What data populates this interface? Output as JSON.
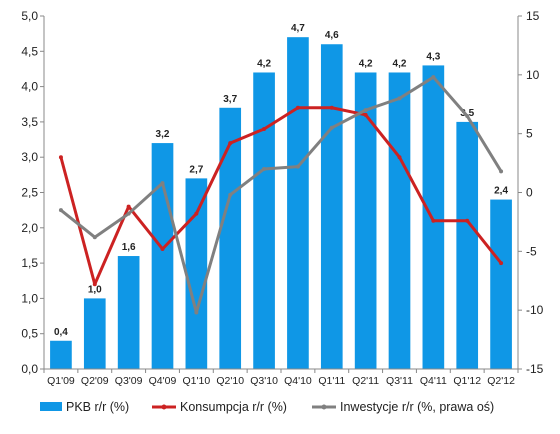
{
  "chart_data": {
    "type": "bar",
    "categories": [
      "Q1'09",
      "Q2'09",
      "Q3'09",
      "Q4'09",
      "Q1'10",
      "Q2'10",
      "Q3'10",
      "Q4'10",
      "Q1'11",
      "Q2'11",
      "Q3'11",
      "Q4'11",
      "Q1'12",
      "Q2'12"
    ],
    "y_left": {
      "ylim": [
        0,
        5
      ],
      "ticks": [
        "0,0",
        "0,5",
        "1,0",
        "1,5",
        "2,0",
        "2,5",
        "3,0",
        "3,5",
        "4,0",
        "4,5",
        "5,0"
      ]
    },
    "y_right": {
      "ylim": [
        -15,
        15
      ],
      "ticks": [
        "-15",
        "-10",
        "-5",
        "0",
        "5",
        "10",
        "15"
      ]
    },
    "grid": false,
    "legend_position": "bottom",
    "series": [
      {
        "name": "PKB r/r  (%)",
        "type": "bar",
        "axis": "left",
        "color": "#0f97e6",
        "values": [
          0.4,
          1.0,
          1.6,
          3.2,
          2.7,
          3.7,
          4.2,
          4.7,
          4.6,
          4.2,
          4.2,
          4.3,
          3.5,
          2.4
        ],
        "labels": [
          "0,4",
          "1,0",
          "1,6",
          "3,2",
          "2,7",
          "3,7",
          "4,2",
          "4,7",
          "4,6",
          "4,2",
          "4,2",
          "4,3",
          "3,5",
          "2,4"
        ]
      },
      {
        "name": "Konsumpcja r/r  (%)",
        "type": "line",
        "axis": "left",
        "color": "#cc2222",
        "values": [
          3.0,
          1.2,
          2.3,
          1.7,
          2.2,
          3.2,
          3.4,
          3.7,
          3.7,
          3.6,
          3.0,
          2.1,
          2.1,
          1.5
        ]
      },
      {
        "name": "Inwestycje r/r  (%, prawa oś)",
        "type": "line",
        "axis": "right",
        "color": "#808080",
        "values": [
          -1.5,
          -3.8,
          -1.8,
          0.8,
          -10.2,
          -0.2,
          2.0,
          2.2,
          5.5,
          7.0,
          8.0,
          9.8,
          6.5,
          1.8
        ]
      }
    ]
  }
}
